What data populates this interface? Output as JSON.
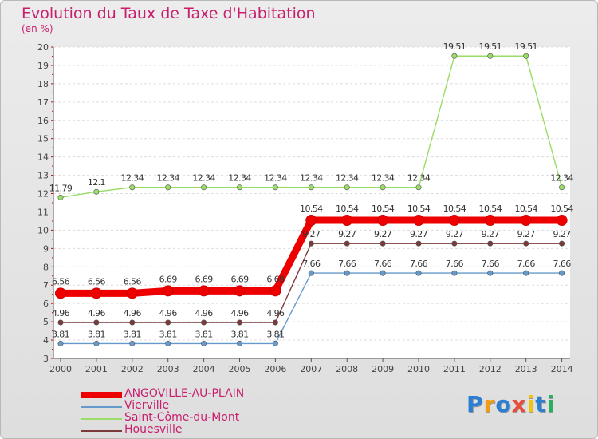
{
  "chart_data": {
    "type": "line",
    "title": "Evolution du Taux de Taxe d'Habitation",
    "ylabel": "(en %)",
    "xlabel": "",
    "ylim": [
      3,
      20
    ],
    "yticks": [
      "3",
      "4",
      "5",
      "6",
      "7",
      "8",
      "9",
      "10",
      "11",
      "12",
      "13",
      "14",
      "15",
      "16",
      "17",
      "18",
      "19",
      "20"
    ],
    "categories": [
      "2000",
      "2001",
      "2002",
      "2003",
      "2004",
      "2005",
      "2006",
      "2007",
      "2008",
      "2009",
      "2010",
      "2011",
      "2012",
      "2013",
      "2014"
    ],
    "series": [
      {
        "name": "ANGOVILLE-AU-PLAIN",
        "color": "#ee0000",
        "values": [
          6.56,
          6.56,
          6.56,
          6.69,
          6.69,
          6.69,
          6.69,
          10.54,
          10.54,
          10.54,
          10.54,
          10.54,
          10.54,
          10.54,
          10.54
        ],
        "labels": [
          "6.56",
          "6.56",
          "6.56",
          "6.69",
          "6.69",
          "6.69",
          "6.69",
          "10.54",
          "10.54",
          "10.54",
          "10.54",
          "10.54",
          "10.54",
          "10.54",
          "10.54"
        ]
      },
      {
        "name": "Vierville",
        "color": "#6699cc",
        "values": [
          3.81,
          3.81,
          3.81,
          3.81,
          3.81,
          3.81,
          3.81,
          7.66,
          7.66,
          7.66,
          7.66,
          7.66,
          7.66,
          7.66,
          7.66
        ],
        "labels": [
          "3.81",
          "3.81",
          "3.81",
          "3.81",
          "3.81",
          "3.81",
          "3.81",
          "7.66",
          "7.66",
          "7.66",
          "7.66",
          "7.66",
          "7.66",
          "7.66",
          "7.66"
        ]
      },
      {
        "name": "Saint-Côme-du-Mont",
        "color": "#99dd66",
        "values": [
          11.79,
          12.1,
          12.34,
          12.34,
          12.34,
          12.34,
          12.34,
          12.34,
          12.34,
          12.34,
          12.34,
          19.51,
          19.51,
          19.51,
          12.34
        ],
        "labels": [
          "11.79",
          "12.1",
          "12.34",
          "12.34",
          "12.34",
          "12.34",
          "12.34",
          "12.34",
          "12.34",
          "12.34",
          "12.34",
          "19.51",
          "19.51",
          "19.51",
          "12.34"
        ]
      },
      {
        "name": "Houesville",
        "color": "#7b3a3a",
        "values": [
          4.96,
          4.96,
          4.96,
          4.96,
          4.96,
          4.96,
          4.96,
          9.27,
          9.27,
          9.27,
          9.27,
          9.27,
          9.27,
          9.27,
          9.27
        ],
        "labels": [
          "4.96",
          "4.96",
          "4.96",
          "4.96",
          "4.96",
          "4.96",
          "4.96",
          "9.27",
          "9.27",
          "9.27",
          "9.27",
          "9.27",
          "9.27",
          "9.27",
          "9.27"
        ]
      }
    ]
  },
  "logo": {
    "text": "Proxiti",
    "letters": [
      "P",
      "r",
      "o",
      "x",
      "i",
      "t",
      "i"
    ],
    "colors": [
      "#2a7fd4",
      "#f39c12",
      "#2a7fd4",
      "#e74c3c",
      "#f1c40f",
      "#2a7fd4",
      "#27ae60"
    ]
  }
}
